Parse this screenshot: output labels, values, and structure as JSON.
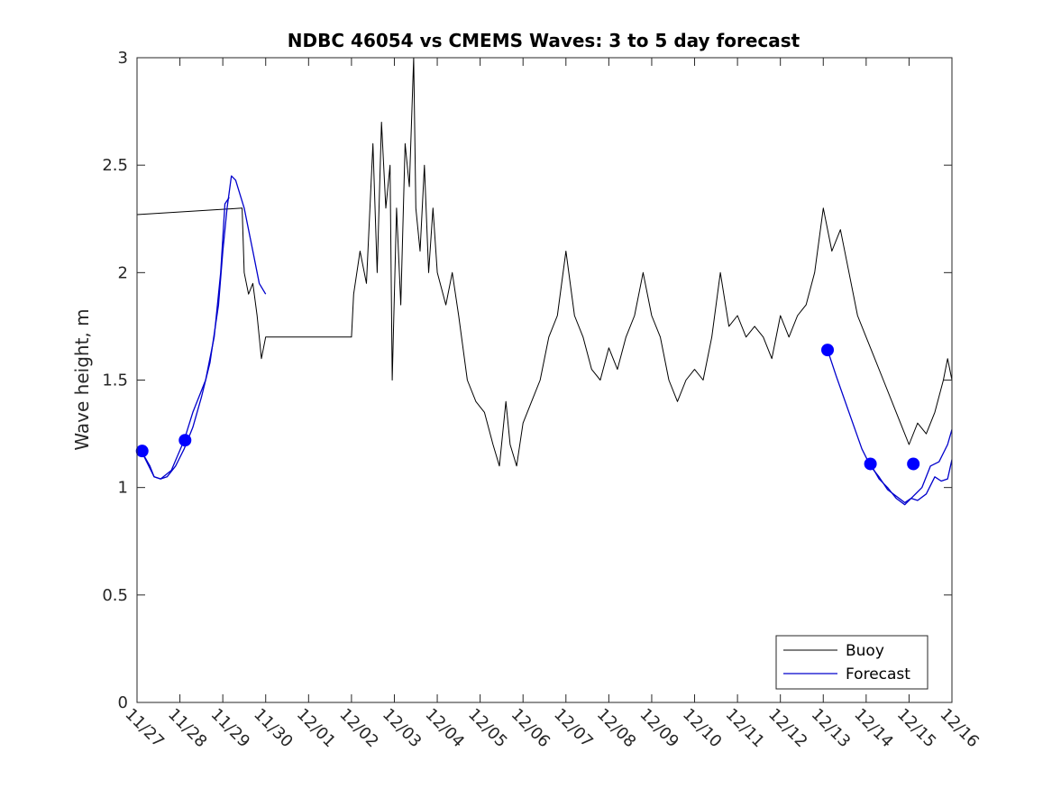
{
  "chart_data": {
    "type": "line",
    "title": "NDBC 46054 vs CMEMS Waves: 3 to 5 day forecast",
    "xlabel": "",
    "ylabel": "Wave height, m",
    "ylim": [
      0,
      3
    ],
    "xlim_days": [
      0,
      19
    ],
    "yticks": [
      "0",
      "0.5",
      "1",
      "1.5",
      "2",
      "2.5",
      "3"
    ],
    "xticks": [
      "11/27",
      "11/28",
      "11/29",
      "11/30",
      "12/01",
      "12/02",
      "12/03",
      "12/04",
      "12/05",
      "12/06",
      "12/07",
      "12/08",
      "12/09",
      "12/10",
      "12/11",
      "12/12",
      "12/13",
      "12/14",
      "12/15",
      "12/16"
    ],
    "legend": {
      "location": "bottom-right",
      "entries": [
        "Buoy",
        "Forecast"
      ]
    },
    "colors": {
      "buoy": "#000000",
      "forecast": "#0000cc",
      "marker": "#0000ff"
    },
    "series": [
      {
        "name": "Buoy",
        "color": "#000000",
        "segments": [
          [
            [
              0,
              2.27
            ],
            [
              2.45,
              2.3
            ],
            [
              2.5,
              2.0
            ],
            [
              2.6,
              1.9
            ],
            [
              2.7,
              1.95
            ],
            [
              2.8,
              1.8
            ],
            [
              2.9,
              1.6
            ],
            [
              3.0,
              1.7
            ],
            [
              5.0,
              1.7
            ],
            [
              5.05,
              1.9
            ],
            [
              5.2,
              2.1
            ],
            [
              5.35,
              1.95
            ],
            [
              5.5,
              2.6
            ],
            [
              5.6,
              2.0
            ],
            [
              5.7,
              2.7
            ],
            [
              5.8,
              2.3
            ],
            [
              5.9,
              2.5
            ],
            [
              5.95,
              1.5
            ],
            [
              6.05,
              2.3
            ],
            [
              6.15,
              1.85
            ],
            [
              6.25,
              2.6
            ],
            [
              6.35,
              2.4
            ],
            [
              6.45,
              3.0
            ],
            [
              6.5,
              2.3
            ],
            [
              6.6,
              2.1
            ],
            [
              6.7,
              2.5
            ],
            [
              6.8,
              2.0
            ],
            [
              6.9,
              2.3
            ],
            [
              7.0,
              2.0
            ],
            [
              7.2,
              1.85
            ],
            [
              7.35,
              2.0
            ],
            [
              7.5,
              1.8
            ],
            [
              7.7,
              1.5
            ],
            [
              7.9,
              1.4
            ],
            [
              8.1,
              1.35
            ],
            [
              8.3,
              1.2
            ],
            [
              8.45,
              1.1
            ],
            [
              8.6,
              1.4
            ],
            [
              8.7,
              1.2
            ],
            [
              8.85,
              1.1
            ],
            [
              9.0,
              1.3
            ],
            [
              9.2,
              1.4
            ],
            [
              9.4,
              1.5
            ],
            [
              9.6,
              1.7
            ],
            [
              9.8,
              1.8
            ],
            [
              10.0,
              2.1
            ],
            [
              10.2,
              1.8
            ],
            [
              10.4,
              1.7
            ],
            [
              10.6,
              1.55
            ],
            [
              10.8,
              1.5
            ],
            [
              11.0,
              1.65
            ],
            [
              11.2,
              1.55
            ],
            [
              11.4,
              1.7
            ],
            [
              11.6,
              1.8
            ],
            [
              11.8,
              2.0
            ],
            [
              12.0,
              1.8
            ],
            [
              12.2,
              1.7
            ],
            [
              12.4,
              1.5
            ],
            [
              12.6,
              1.4
            ],
            [
              12.8,
              1.5
            ],
            [
              13.0,
              1.55
            ],
            [
              13.2,
              1.5
            ],
            [
              13.4,
              1.7
            ],
            [
              13.6,
              2.0
            ],
            [
              13.8,
              1.75
            ],
            [
              14.0,
              1.8
            ],
            [
              14.2,
              1.7
            ],
            [
              14.4,
              1.75
            ],
            [
              14.6,
              1.7
            ],
            [
              14.8,
              1.6
            ],
            [
              15.0,
              1.8
            ],
            [
              15.2,
              1.7
            ],
            [
              15.4,
              1.8
            ],
            [
              15.6,
              1.85
            ],
            [
              15.8,
              2.0
            ],
            [
              16.0,
              2.3
            ],
            [
              16.2,
              2.1
            ],
            [
              16.4,
              2.2
            ],
            [
              16.6,
              2.0
            ],
            [
              16.8,
              1.8
            ],
            [
              17.0,
              1.7
            ],
            [
              17.2,
              1.6
            ],
            [
              17.4,
              1.5
            ],
            [
              17.6,
              1.4
            ],
            [
              17.8,
              1.3
            ],
            [
              18.0,
              1.2
            ],
            [
              18.2,
              1.3
            ],
            [
              18.4,
              1.25
            ],
            [
              18.6,
              1.35
            ],
            [
              18.8,
              1.5
            ],
            [
              18.9,
              1.6
            ],
            [
              19.0,
              1.5
            ]
          ]
        ]
      },
      {
        "name": "Forecast",
        "color": "#0000cc",
        "segments": [
          [
            [
              0.1,
              1.17
            ],
            [
              0.3,
              1.1
            ],
            [
              0.4,
              1.05
            ],
            [
              0.55,
              1.04
            ],
            [
              0.7,
              1.05
            ],
            [
              0.9,
              1.1
            ],
            [
              1.1,
              1.18
            ],
            [
              1.3,
              1.28
            ],
            [
              1.5,
              1.42
            ],
            [
              1.7,
              1.58
            ],
            [
              1.9,
              1.85
            ],
            [
              2.0,
              2.1
            ],
            [
              2.1,
              2.3
            ],
            [
              2.2,
              2.45
            ],
            [
              2.3,
              2.43
            ],
            [
              2.5,
              2.3
            ],
            [
              2.7,
              2.1
            ],
            [
              2.85,
              1.95
            ],
            [
              3.0,
              1.9
            ]
          ],
          [
            [
              0.1,
              1.17
            ],
            [
              0.4,
              1.05
            ],
            [
              0.55,
              1.04
            ],
            [
              0.8,
              1.08
            ],
            [
              1.1,
              1.22
            ],
            [
              1.3,
              1.35
            ],
            [
              1.6,
              1.5
            ],
            [
              1.8,
              1.7
            ],
            [
              1.95,
              2.0
            ],
            [
              2.05,
              2.32
            ],
            [
              2.15,
              2.35
            ]
          ],
          [
            [
              16.1,
              1.64
            ],
            [
              16.3,
              1.52
            ],
            [
              16.6,
              1.35
            ],
            [
              16.9,
              1.18
            ],
            [
              17.1,
              1.1
            ],
            [
              17.3,
              1.05
            ],
            [
              17.5,
              0.99
            ],
            [
              17.7,
              0.96
            ],
            [
              17.9,
              0.93
            ],
            [
              18.05,
              0.95
            ],
            [
              18.2,
              0.94
            ],
            [
              18.4,
              0.97
            ],
            [
              18.6,
              1.05
            ],
            [
              18.75,
              1.03
            ],
            [
              18.9,
              1.04
            ],
            [
              19.0,
              1.13
            ]
          ],
          [
            [
              17.1,
              1.11
            ],
            [
              17.3,
              1.04
            ],
            [
              17.5,
              1.0
            ],
            [
              17.7,
              0.95
            ],
            [
              17.9,
              0.92
            ],
            [
              18.1,
              0.96
            ],
            [
              18.3,
              1.0
            ],
            [
              18.5,
              1.1
            ],
            [
              18.7,
              1.12
            ],
            [
              18.9,
              1.2
            ],
            [
              19.0,
              1.27
            ]
          ]
        ]
      }
    ],
    "markers": [
      {
        "x": 0.12,
        "y": 1.17
      },
      {
        "x": 1.12,
        "y": 1.22
      },
      {
        "x": 16.1,
        "y": 1.64
      },
      {
        "x": 17.1,
        "y": 1.11
      },
      {
        "x": 18.1,
        "y": 1.11
      }
    ]
  }
}
